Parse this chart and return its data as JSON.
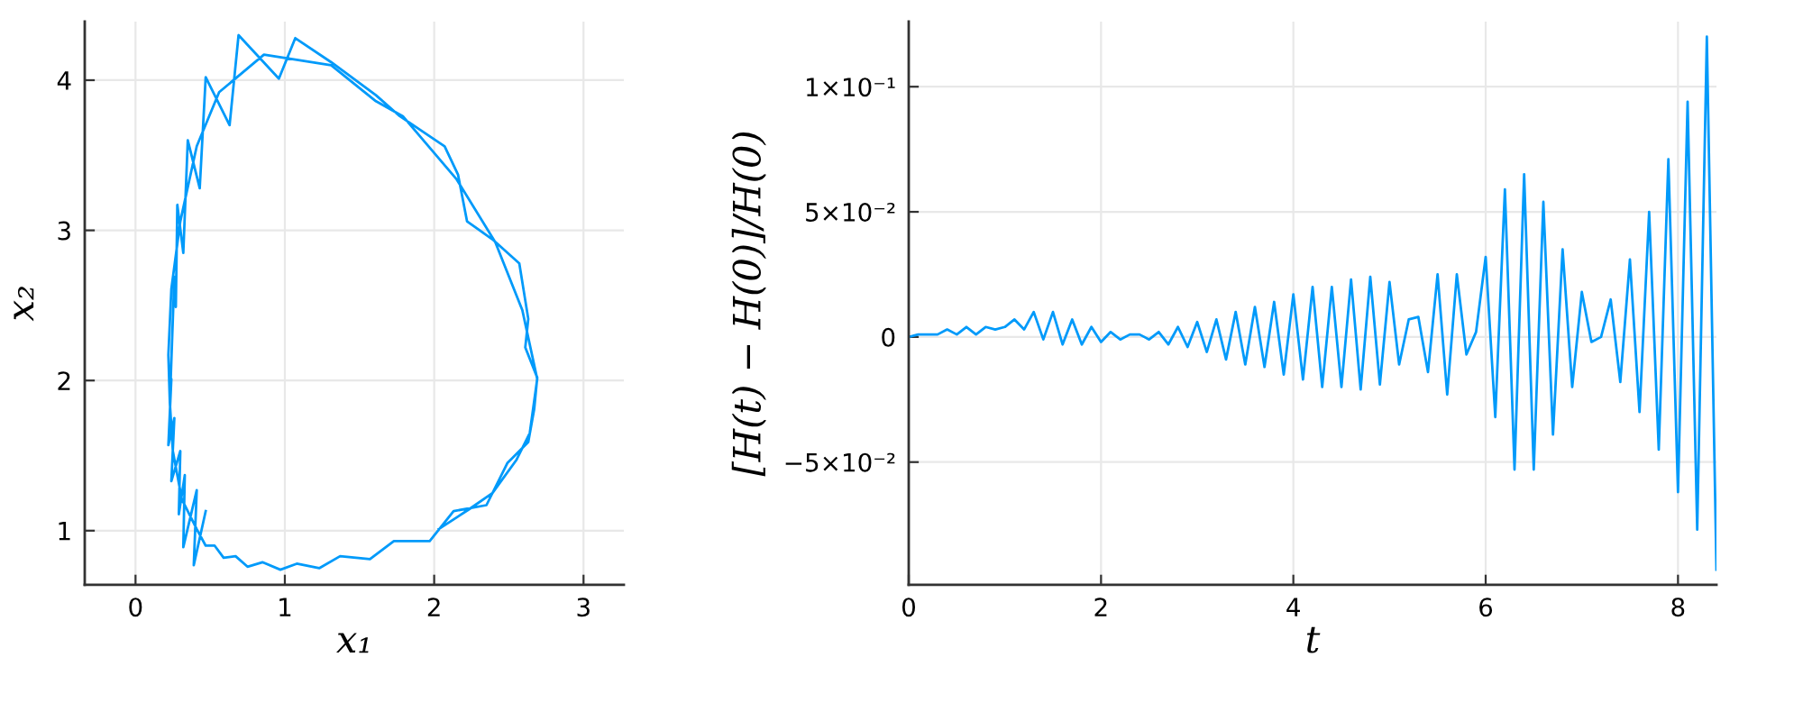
{
  "chart_data": [
    {
      "type": "line",
      "xlabel": "x₁",
      "ylabel": "x₂",
      "series": [
        {
          "color": "#009afa",
          "x": [
            2.03,
            2.23,
            2.39,
            2.55,
            2.64,
            2.69,
            2.59,
            2.41,
            2.15,
            1.79,
            1.61,
            1.31,
            0.86,
            0.56,
            0.41,
            0.3,
            0.24,
            0.22,
            0.23,
            0.25,
            0.31,
            0.41,
            0.47,
            0.53,
            0.59,
            0.67,
            0.75,
            0.85,
            0.97,
            1.08,
            1.23,
            1.37,
            1.57,
            1.73,
            1.97,
            2.13,
            2.35,
            2.49,
            2.63,
            2.67,
            2.69,
            2.61,
            2.63,
            2.57,
            2.39,
            2.22,
            2.16,
            2.07,
            1.77,
            1.61,
            1.31,
            1.07,
            0.96,
            0.69,
            0.63,
            0.47,
            0.43,
            0.35,
            0.32,
            0.28,
            0.27,
            0.26,
            0.23,
            0.24,
            0.22,
            0.26,
            0.24,
            0.3,
            0.29,
            0.33,
            0.32,
            0.41,
            0.39,
            0.47
          ],
          "values": [
            1.01,
            1.14,
            1.25,
            1.47,
            1.65,
            2.01,
            2.47,
            2.92,
            3.34,
            3.76,
            3.86,
            4.1,
            4.17,
            3.92,
            3.56,
            3.06,
            2.61,
            2.17,
            1.85,
            1.53,
            1.21,
            1.01,
            0.9,
            0.9,
            0.82,
            0.83,
            0.76,
            0.79,
            0.74,
            0.78,
            0.75,
            0.83,
            0.81,
            0.93,
            0.93,
            1.13,
            1.17,
            1.45,
            1.59,
            1.81,
            2.02,
            2.22,
            2.41,
            2.78,
            2.94,
            3.06,
            3.37,
            3.56,
            3.76,
            3.9,
            4.12,
            4.28,
            4.01,
            4.3,
            3.7,
            4.02,
            3.28,
            3.6,
            2.85,
            3.17,
            2.49,
            2.69,
            1.85,
            2.01,
            1.57,
            1.75,
            1.33,
            1.53,
            1.11,
            1.37,
            0.89,
            1.27,
            0.77,
            1.13
          ]
        }
      ],
      "xlim": [
        -0.34,
        3.27
      ],
      "ylim": [
        0.64,
        4.39
      ],
      "xticks": [
        0,
        1,
        2,
        3
      ],
      "yticks": [
        1,
        2,
        3,
        4
      ],
      "grid": true
    },
    {
      "type": "line",
      "xlabel": "t",
      "ylabel": "[H(t) − H(0)]/H(0)",
      "x": [
        0,
        0.1,
        0.2,
        0.3,
        0.4,
        0.5,
        0.6,
        0.7,
        0.8,
        0.9,
        1,
        1.1,
        1.2,
        1.3,
        1.4,
        1.5,
        1.6,
        1.7,
        1.8,
        1.9,
        2,
        2.1,
        2.2,
        2.3,
        2.4,
        2.5,
        2.6,
        2.7,
        2.8,
        2.9,
        3,
        3.1,
        3.2,
        3.3,
        3.4,
        3.5,
        3.6,
        3.7,
        3.8,
        3.9,
        4,
        4.1,
        4.2,
        4.3,
        4.4,
        4.5,
        4.6,
        4.7,
        4.8,
        4.9,
        5,
        5.1,
        5.2,
        5.3,
        5.4,
        5.5,
        5.6,
        5.7,
        5.8,
        5.9,
        6,
        6.1,
        6.2,
        6.3,
        6.4,
        6.5,
        6.6,
        6.7,
        6.8,
        6.9,
        7,
        7.1,
        7.2,
        7.3,
        7.4,
        7.5,
        7.6,
        7.7,
        7.8,
        7.9,
        8,
        8.1,
        8.2,
        8.3,
        8.4
      ],
      "series": [
        {
          "color": "#009afa",
          "values": [
            0,
            0.001,
            0.001,
            0.001,
            0.003,
            0.001,
            0.004,
            0.001,
            0.004,
            0.003,
            0.004,
            0.007,
            0.003,
            0.01,
            -0.001,
            0.01,
            -0.003,
            0.007,
            -0.003,
            0.004,
            -0.002,
            0.002,
            -0.001,
            0.001,
            0.001,
            -0.001,
            0.002,
            -0.003,
            0.004,
            -0.004,
            0.006,
            -0.006,
            0.007,
            -0.009,
            0.01,
            -0.011,
            0.012,
            -0.012,
            0.014,
            -0.015,
            0.017,
            -0.017,
            0.02,
            -0.02,
            0.02,
            -0.02,
            0.023,
            -0.021,
            0.024,
            -0.019,
            0.022,
            -0.011,
            0.007,
            0.008,
            -0.014,
            0.025,
            -0.023,
            0.025,
            -0.007,
            0.002,
            0.032,
            -0.032,
            0.059,
            -0.053,
            0.065,
            -0.053,
            0.054,
            -0.039,
            0.035,
            -0.02,
            0.018,
            -0.002,
            0.0,
            0.015,
            -0.018,
            0.031,
            -0.03,
            0.05,
            -0.045,
            0.071,
            -0.062,
            0.094,
            -0.077,
            0.12,
            -0.093
          ]
        }
      ],
      "xlim": [
        0,
        8.4
      ],
      "ylim": [
        -0.099,
        0.126
      ],
      "xticks": [
        0,
        2,
        4,
        6,
        8
      ],
      "yticks": [
        {
          "value": 0.1,
          "label": "1×10⁻¹"
        },
        {
          "value": 0.05,
          "label": "5×10⁻²"
        },
        0,
        {
          "value": -0.05,
          "label": "−5×10⁻²"
        }
      ],
      "grid": true
    }
  ]
}
